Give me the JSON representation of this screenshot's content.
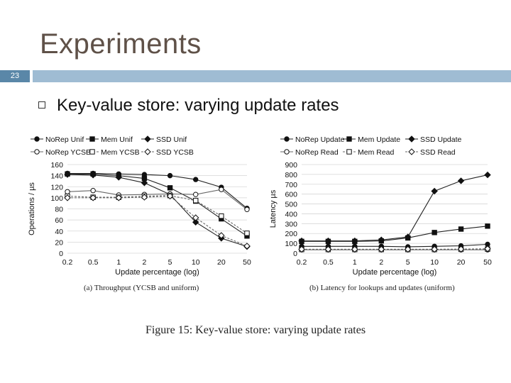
{
  "slide": {
    "title": "Experiments",
    "number": "23",
    "bullet": "Key-value store: varying update rates",
    "figure_caption": "Figure 15: Key-value store: varying update rates"
  },
  "chart_data": [
    {
      "type": "line",
      "subcaption": "(a) Throughput (YCSB and uniform)",
      "xlabel": "Update percentage (log)",
      "ylabel": "Operations / µs",
      "categories": [
        "0.2",
        "0.5",
        "1",
        "2",
        "5",
        "10",
        "20",
        "50"
      ],
      "ylim": [
        0,
        160
      ],
      "yticks": [
        0,
        20,
        40,
        60,
        80,
        100,
        120,
        140,
        160
      ],
      "grid": true,
      "legend": "top",
      "series": [
        {
          "name": "NoRep Unif",
          "marker": "circle",
          "fill": "filled",
          "dash": "solid",
          "values": [
            144,
            144,
            143,
            142,
            140,
            133,
            119,
            81
          ]
        },
        {
          "name": "Mem Unif",
          "marker": "square",
          "fill": "filled",
          "dash": "solid",
          "values": [
            143,
            143,
            140,
            135,
            118,
            94,
            62,
            31
          ]
        },
        {
          "name": "SSD Unif",
          "marker": "diamond",
          "fill": "filled",
          "dash": "solid",
          "values": [
            142,
            141,
            137,
            127,
            106,
            56,
            27,
            12
          ]
        },
        {
          "name": "NoRep YCSB",
          "marker": "circle",
          "fill": "open",
          "dash": "solid",
          "values": [
            111,
            113,
            105,
            106,
            107,
            106,
            115,
            79
          ]
        },
        {
          "name": "Mem YCSB",
          "marker": "square",
          "fill": "open",
          "dash": "dashed",
          "values": [
            103,
            101,
            101,
            103,
            104,
            95,
            67,
            36
          ]
        },
        {
          "name": "SSD YCSB",
          "marker": "diamond",
          "fill": "open",
          "dash": "dashed",
          "values": [
            100,
            100,
            100,
            101,
            103,
            64,
            32,
            13
          ]
        }
      ]
    },
    {
      "type": "line",
      "subcaption": "(b) Latency for lookups and updates (uniform)",
      "xlabel": "Update percentage (log)",
      "ylabel": "Latency µs",
      "categories": [
        "0.2",
        "0.5",
        "1",
        "2",
        "5",
        "10",
        "20",
        "50"
      ],
      "ylim": [
        0,
        900
      ],
      "yticks": [
        0,
        100,
        200,
        300,
        400,
        500,
        600,
        700,
        800,
        900
      ],
      "grid": true,
      "legend": "top",
      "series": [
        {
          "name": "NoRep Update",
          "marker": "circle",
          "fill": "filled",
          "dash": "solid",
          "values": [
            70,
            70,
            70,
            70,
            65,
            70,
            75,
            90
          ]
        },
        {
          "name": "Mem Update",
          "marker": "square",
          "fill": "filled",
          "dash": "solid",
          "values": [
            120,
            120,
            120,
            125,
            155,
            210,
            245,
            275
          ]
        },
        {
          "name": "SSD Update",
          "marker": "diamond",
          "fill": "filled",
          "dash": "solid",
          "values": [
            125,
            125,
            125,
            135,
            165,
            630,
            735,
            795
          ]
        },
        {
          "name": "NoRep Read",
          "marker": "circle",
          "fill": "open",
          "dash": "solid",
          "values": [
            35,
            35,
            35,
            35,
            35,
            35,
            35,
            35
          ]
        },
        {
          "name": "Mem Read",
          "marker": "square",
          "fill": "open",
          "dash": "dashed",
          "values": [
            38,
            38,
            38,
            38,
            38,
            38,
            40,
            42
          ]
        },
        {
          "name": "SSD Read",
          "marker": "diamond",
          "fill": "open",
          "dash": "dashed",
          "values": [
            40,
            40,
            40,
            40,
            40,
            40,
            42,
            45
          ]
        }
      ]
    }
  ]
}
